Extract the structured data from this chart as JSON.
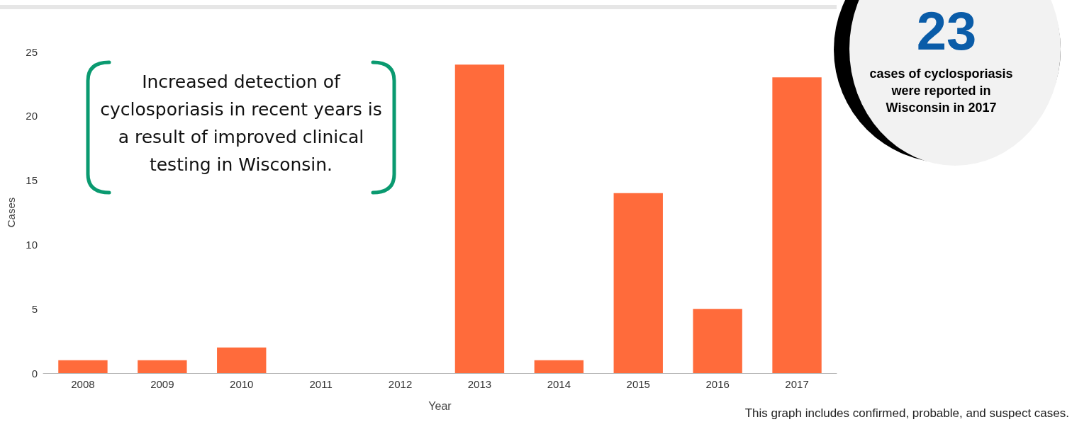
{
  "chart_data": {
    "type": "bar",
    "xlabel": "Year",
    "ylabel": "Cases",
    "categories": [
      "2008",
      "2009",
      "2010",
      "2011",
      "2012",
      "2013",
      "2014",
      "2015",
      "2016",
      "2017"
    ],
    "values": [
      1,
      1,
      2,
      0,
      0,
      24,
      1,
      14,
      5,
      23
    ],
    "color": "#ff6b3b",
    "ylim": [
      0,
      25
    ],
    "yticks": [
      0,
      5,
      10,
      15,
      20,
      25
    ],
    "grid": false,
    "annotations": [
      "Increased detection of cyclosporiasis in recent years is a result of improved clinical testing in Wisconsin.",
      "23",
      "cases of cyclosporiasis were reported in Wisconsin in 2017",
      "This graph includes confirmed, probable, and suspect cases."
    ]
  }
}
